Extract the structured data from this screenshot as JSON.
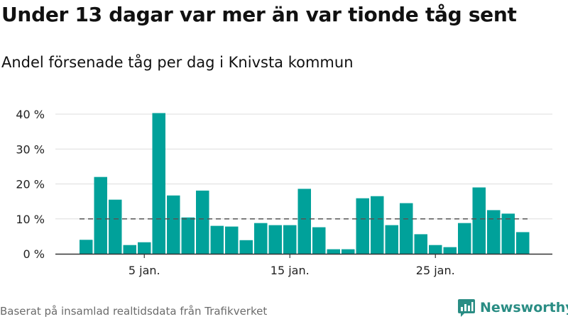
{
  "header": {
    "title": "Under 13 dagar var mer än var tionde tåg sent",
    "subtitle": "Andel försenade tåg per dag i Knivsta kommun"
  },
  "footer": {
    "source": "Baserat på insamlad realtidsdata från Trafikverket",
    "brand": "Newsworthy",
    "brand_icon": "newsworthy-logo-icon"
  },
  "colors": {
    "bar": "#00a19a",
    "grid": "#dddddd",
    "threshold": "#555555",
    "brand": "#2a8d84"
  },
  "chart_data": {
    "type": "bar",
    "x": [
      1,
      2,
      3,
      4,
      5,
      6,
      7,
      8,
      9,
      10,
      11,
      12,
      13,
      14,
      15,
      16,
      17,
      18,
      19,
      20,
      21,
      22,
      23,
      24,
      25,
      26,
      27,
      28,
      29,
      30,
      31
    ],
    "values": [
      4.0,
      22.0,
      15.5,
      2.5,
      3.3,
      40.3,
      16.7,
      10.4,
      18.1,
      8.0,
      7.8,
      3.9,
      8.8,
      8.2,
      8.2,
      18.6,
      7.6,
      1.3,
      1.3,
      15.9,
      16.5,
      8.2,
      14.5,
      5.6,
      2.5,
      1.9,
      8.8,
      19.0,
      12.5,
      11.5,
      6.2
    ],
    "ylim": [
      0,
      40
    ],
    "yticks": [
      0,
      10,
      20,
      30,
      40
    ],
    "ytick_labels": [
      "0 %",
      "10 %",
      "20 %",
      "30 %",
      "40 %"
    ],
    "xticks": [
      5,
      15,
      25
    ],
    "xtick_labels": [
      "5 jan.",
      "15 jan.",
      "25 jan."
    ],
    "threshold": 10,
    "threshold_style": "dashed",
    "grid": true,
    "xlabel": "",
    "ylabel": ""
  }
}
